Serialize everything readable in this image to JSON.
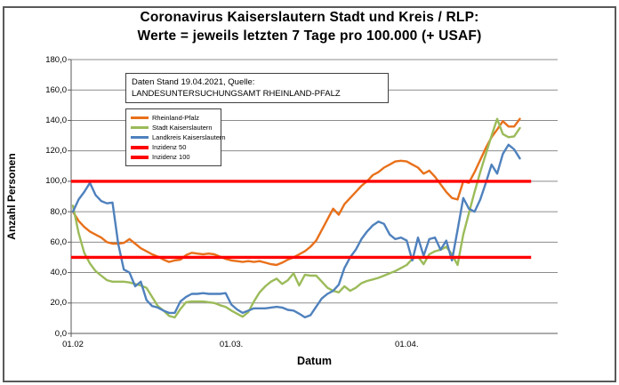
{
  "title": {
    "line1": "Coronavirus Kaiserslautern Stadt und Kreis / RLP:",
    "line2": "Werte = jeweils letzten 7 Tage pro 100.000 (+ USAF)"
  },
  "info_box": {
    "text": "Daten Stand 19.04.2021, Quelle: LANDESUNTERSUCHUNGSAMT RHEINLAND-PFALZ"
  },
  "axes": {
    "y_label": "Anzahl Personen",
    "x_label": "Datum",
    "y_ticks": [
      "180,0",
      "160,0",
      "140,0",
      "120,0",
      "100,0",
      "80,0",
      "60,0",
      "40,0",
      "20,0",
      "0,0"
    ],
    "x_ticks": [
      "01.02",
      "01.03.",
      "01.04."
    ]
  },
  "colors": {
    "orange": "#E8701A",
    "green": "#9BBB59",
    "blue": "#4F81BD",
    "red": "#FF0000",
    "gridline": "#8C8C8C",
    "axis": "#595959",
    "frame": "#595959"
  },
  "chart_data": {
    "type": "line",
    "title": "Coronavirus Kaiserslautern Stadt und Kreis / RLP: Werte = jeweils letzten 7 Tage pro 100.000 (+ USAF)",
    "xlabel": "Datum",
    "ylabel": "Anzahl Personen",
    "ylim": [
      0,
      180
    ],
    "y_step": 20,
    "grid": true,
    "legend_position": "upper-left-box",
    "x_unit": "days since 01.02.2021",
    "x_tick_days": [
      0,
      28,
      59
    ],
    "x_total_days": 86,
    "series": [
      {
        "name": "Rheinland-Pfalz",
        "color": "#E8701A",
        "width": 2.4,
        "values": [
          80,
          74,
          70,
          67,
          65,
          63,
          60,
          59,
          59,
          59.5,
          62,
          59,
          56,
          54,
          52,
          50.5,
          48.5,
          47,
          48,
          48.5,
          51.5,
          53,
          52.5,
          52,
          52.5,
          52,
          50.5,
          49,
          48,
          47.5,
          47,
          47.5,
          47,
          47.5,
          46.5,
          45.5,
          45,
          46.5,
          48.5,
          50,
          52,
          54,
          57,
          61,
          68,
          75,
          82,
          78,
          85,
          89,
          93,
          97,
          100,
          104,
          106,
          109,
          111,
          113,
          113.5,
          113,
          111,
          109,
          105,
          107,
          103,
          98,
          93,
          89,
          88,
          100,
          99,
          106,
          114,
          122,
          129,
          134,
          139.5,
          136,
          136,
          141
        ]
      },
      {
        "name": "Stadt Kaiserslautern",
        "color": "#9BBB59",
        "width": 2.4,
        "values": [
          84,
          66,
          53,
          46,
          41,
          38,
          35,
          34,
          34,
          34,
          33.5,
          32.5,
          31.5,
          30,
          24,
          18,
          15,
          11.5,
          10.5,
          16,
          20.5,
          21,
          21,
          21,
          20.5,
          20,
          18.5,
          17.5,
          15,
          13,
          11,
          14,
          21,
          27,
          31,
          34,
          36,
          32.5,
          35,
          39.5,
          31.5,
          38.5,
          38,
          38,
          34,
          30,
          28,
          27,
          31,
          28,
          30,
          33,
          34.5,
          35.5,
          36.5,
          38,
          39.5,
          41,
          43,
          45,
          49,
          50.5,
          45.5,
          52,
          54,
          55,
          57,
          52,
          45,
          65,
          79,
          93,
          106,
          118,
          130,
          141,
          131,
          129,
          129.5,
          135
        ]
      },
      {
        "name": "Landkreis Kaiserslautern",
        "color": "#4F81BD",
        "width": 2.4,
        "values": [
          80,
          88,
          93,
          99,
          91,
          87,
          85.5,
          86,
          59,
          42,
          40,
          31,
          34,
          22,
          18,
          17,
          15,
          13.5,
          13.5,
          21,
          24,
          26,
          26,
          26.5,
          26,
          26,
          26,
          26.5,
          19,
          15.8,
          13.5,
          15,
          16.5,
          16.5,
          16.5,
          17,
          17.5,
          17,
          15.5,
          15,
          13,
          10.6,
          12,
          17.6,
          23,
          26,
          28,
          32,
          43,
          50,
          55,
          62,
          67,
          71,
          73.5,
          72,
          65,
          62,
          63,
          61,
          48,
          63,
          51,
          62,
          63,
          55,
          61,
          48,
          68,
          89,
          82,
          80,
          88,
          99,
          111,
          105,
          118,
          124,
          121,
          115
        ]
      },
      {
        "name": "Inzidenz 50",
        "color": "#FF0000",
        "width": 3.4,
        "const_value": 50,
        "end_day": 81
      },
      {
        "name": "Inzidenz 100",
        "color": "#FF0000",
        "width": 3.4,
        "const_value": 100,
        "end_day": 81
      }
    ]
  }
}
